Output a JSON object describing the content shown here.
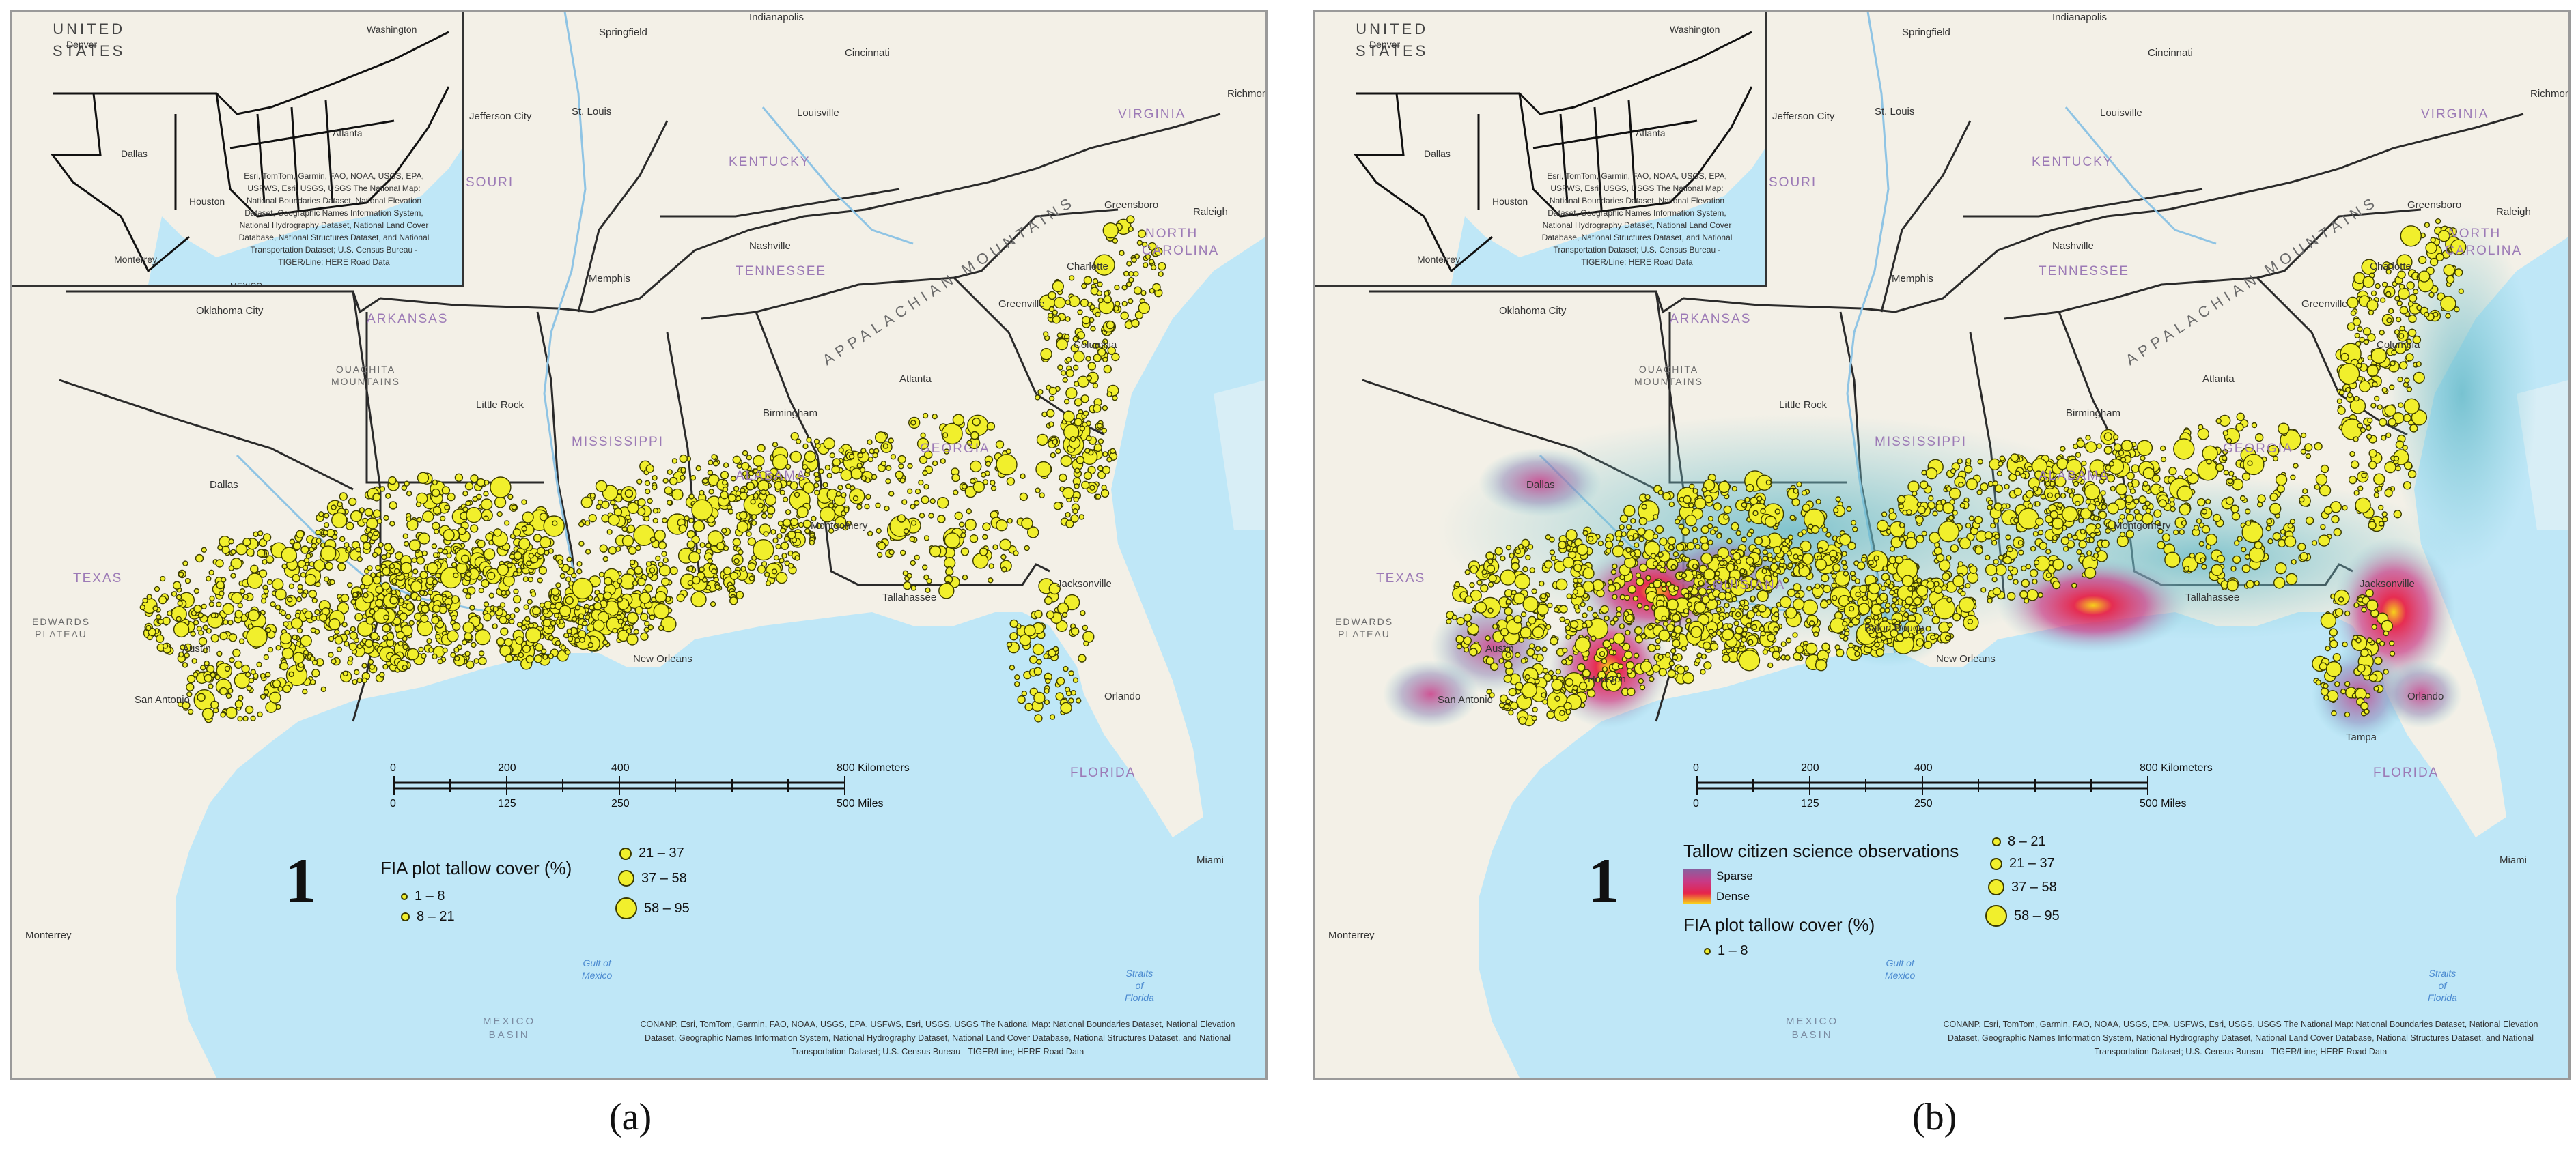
{
  "inset": {
    "title_line1": "UNITED",
    "title_line2": "STATES",
    "cities": {
      "denver": "Denver",
      "washington": "Washington",
      "dallas": "Dallas",
      "houston": "Houston",
      "monterrey": "Monterrey",
      "atlanta": "Atlanta",
      "mexico": "MEXICO"
    },
    "attribution": "Esri, TomTom, Garmin, FAO, NOAA, USGS, EPA, USFWS, Esri, USGS, USGS The National Map: National Boundaries Dataset, National Elevation Dataset, Geographic Names Information System, National Hydrography Dataset, National Land Cover Database, National Structures Dataset, and National Transportation Dataset; U.S. Census Bureau - TIGER/Line; HERE Road Data"
  },
  "map_labels": {
    "states": {
      "arkansas": "ARKANSAS",
      "mississippi": "MISSISSIPPI",
      "alabama": "ALABAMA",
      "georgia": "GEORGIA",
      "tennessee": "TENNESSEE",
      "kentucky": "KENTUCKY",
      "virginia": "VIRGINIA",
      "north_carolina_1": "NORTH",
      "north_carolina_2": "CAROLINA",
      "missouri": "SOURI",
      "texas": "TEXAS",
      "louisiana": "LOUISIANA",
      "florida": "FLORIDA"
    },
    "cities": {
      "springfield": "Springfield",
      "indianapolis": "Indianapolis",
      "cincinnati": "Cincinnati",
      "washington": "Washington",
      "richmond": "Richmond",
      "jefferson_city": "Jefferson City",
      "st_louis": "St. Louis",
      "louisville": "Louisville",
      "nashville": "Nashville",
      "greensboro": "Greensboro",
      "raleigh": "Raleigh",
      "charlotte": "Charlotte",
      "oklahoma_city": "Oklahoma City",
      "memphis": "Memphis",
      "greenville": "Greenville",
      "columbia": "Columbia",
      "little_rock": "Little Rock",
      "birmingham": "Birmingham",
      "atlanta": "Atlanta",
      "dallas": "Dallas",
      "montgomery": "Montgomery",
      "jacksonville": "Jacksonville",
      "tallahassee": "Tallahassee",
      "austin": "Austin",
      "houston": "Houston",
      "baton_rouge": "Baton Rouge",
      "new_orleans": "New Orleans",
      "san_antonio": "San Antonio",
      "orlando": "Orlando",
      "tampa": "Tampa",
      "miami": "Miami",
      "monterrey": "Monterrey",
      "denver": "Denver"
    },
    "physiographic": {
      "ouachita_1": "OUACHITA",
      "ouachita_2": "MOUNTAINS",
      "edwards_1": "EDWARDS",
      "edwards_2": "PLATEAU",
      "appalachian": "APPALACHIAN MOUNTAINS",
      "mexico_basin_1": "MEXICO",
      "mexico_basin_2": "BASIN"
    },
    "water": {
      "gulf_1": "Gulf of",
      "gulf_2": "Mexico",
      "straits_1": "Straits",
      "straits_2": "of",
      "straits_3": "Florida"
    }
  },
  "scale_bar": {
    "km_0": "0",
    "km_200": "200",
    "km_400": "400",
    "km_800": "800 Kilometers",
    "mi_0": "0",
    "mi_125": "125",
    "mi_250": "250",
    "mi_500": "500 Miles"
  },
  "panel_number": "1",
  "attribution": "CONANP, Esri, TomTom, Garmin, FAO, NOAA, USGS, EPA, USFWS, Esri, USGS, USGS The National Map: National Boundaries Dataset, National Elevation Dataset, Geographic Names Information System, National Hydrography Dataset, National Land Cover Database, National Structures Dataset, and National Transportation Dataset; U.S. Census Bureau - TIGER/Line; HERE Road Data",
  "legend_a": {
    "title": "FIA plot tallow cover (%)",
    "classes": [
      "1 – 8",
      "8 – 21",
      "21 – 37",
      "37 – 58",
      "58 – 95"
    ]
  },
  "legend_b": {
    "heat_title": "Tallow citizen science observations",
    "sparse": "Sparse",
    "dense": "Dense",
    "fia_title": "FIA plot tallow cover (%)",
    "classes": [
      "1 – 8",
      "8 – 21",
      "21 – 37",
      "37 – 58",
      "58 – 95"
    ]
  },
  "captions": {
    "a": "(a)",
    "b": "(b)"
  },
  "colors": {
    "point_fill": "#f1ef2c",
    "land": "#f3f0e7",
    "water": "#bfe7f7",
    "heat_sparse": "#7fc8d3",
    "heat_dense": "#e6234a"
  }
}
